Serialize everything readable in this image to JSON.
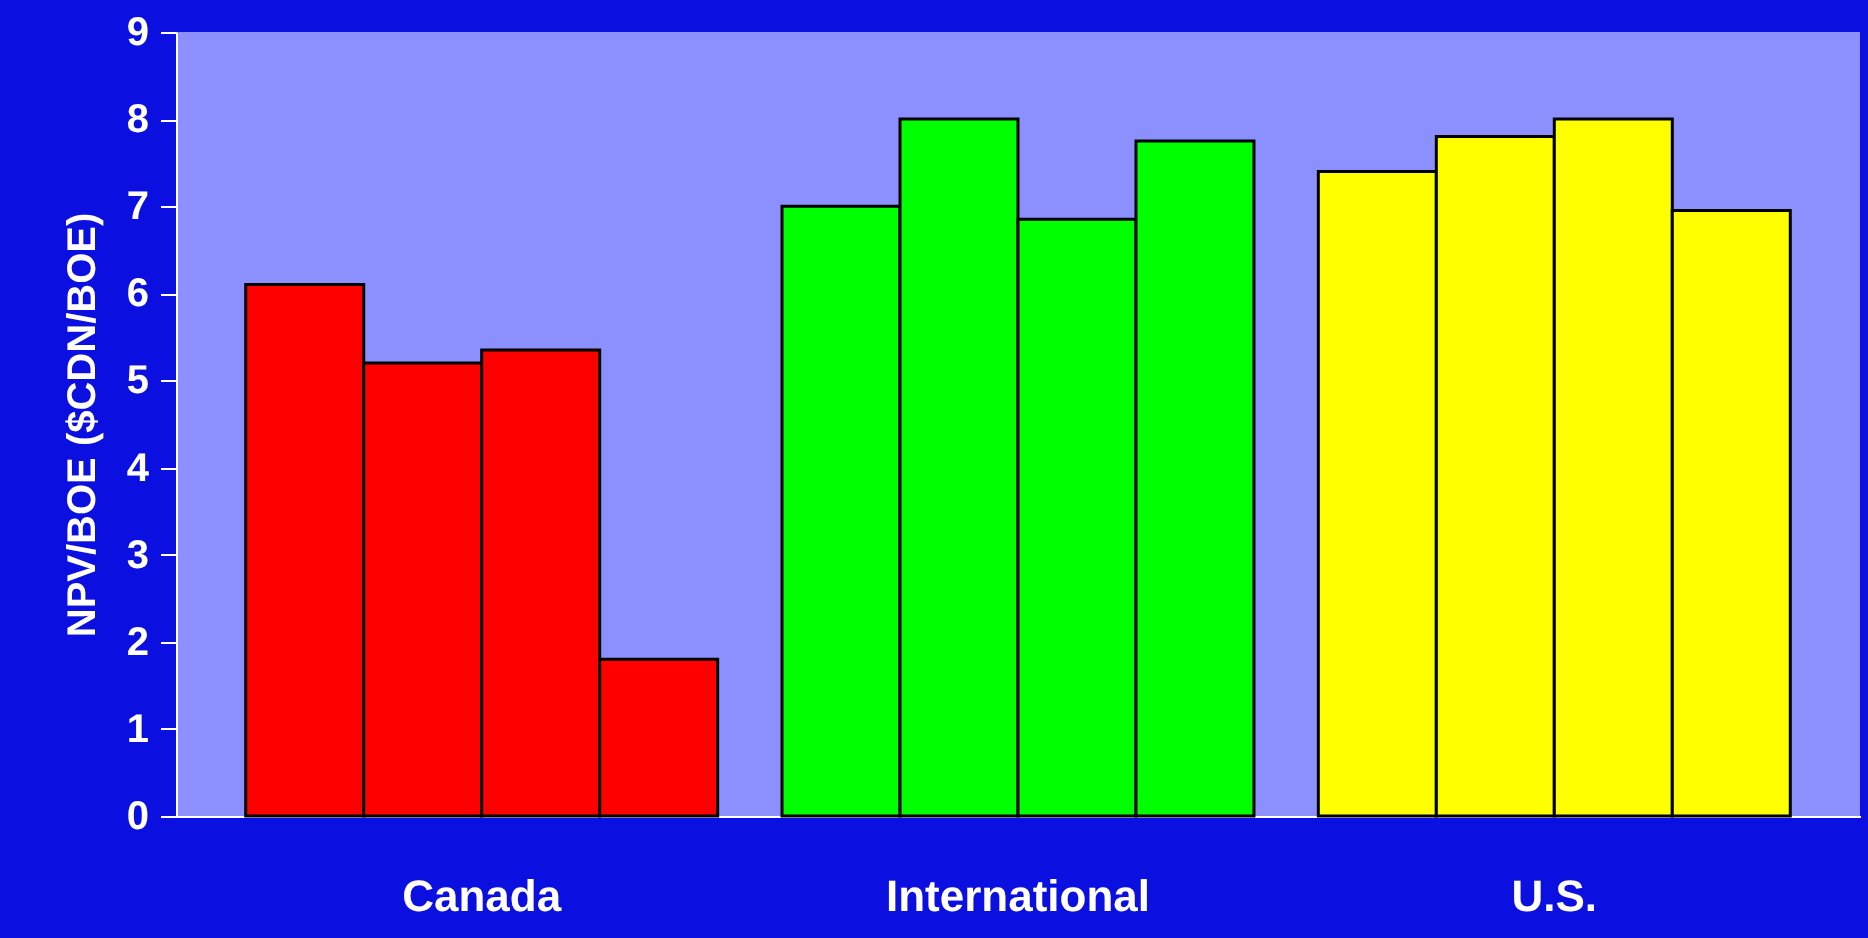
{
  "chart_data": {
    "type": "bar",
    "ylabel": "NPV/BOE ($CDN/BOE)",
    "categories": [
      "Canada",
      "International",
      "U.S."
    ],
    "series": [
      {
        "colors": [
          "#ff0000",
          "#00ff00",
          "#ffff00"
        ],
        "values": [
          6.1,
          7.0,
          7.4
        ]
      },
      {
        "colors": [
          "#ff0000",
          "#00ff00",
          "#ffff00"
        ],
        "values": [
          5.2,
          8.0,
          7.8
        ]
      },
      {
        "colors": [
          "#ff0000",
          "#00ff00",
          "#ffff00"
        ],
        "values": [
          5.35,
          6.85,
          8.0
        ]
      },
      {
        "colors": [
          "#ff0000",
          "#00ff00",
          "#ffff00"
        ],
        "values": [
          1.8,
          7.75,
          6.95
        ]
      }
    ],
    "ylim": [
      0,
      9
    ],
    "yticks": [
      0,
      1,
      2,
      3,
      4,
      5,
      6,
      7,
      8,
      9
    ],
    "grid": false
  }
}
